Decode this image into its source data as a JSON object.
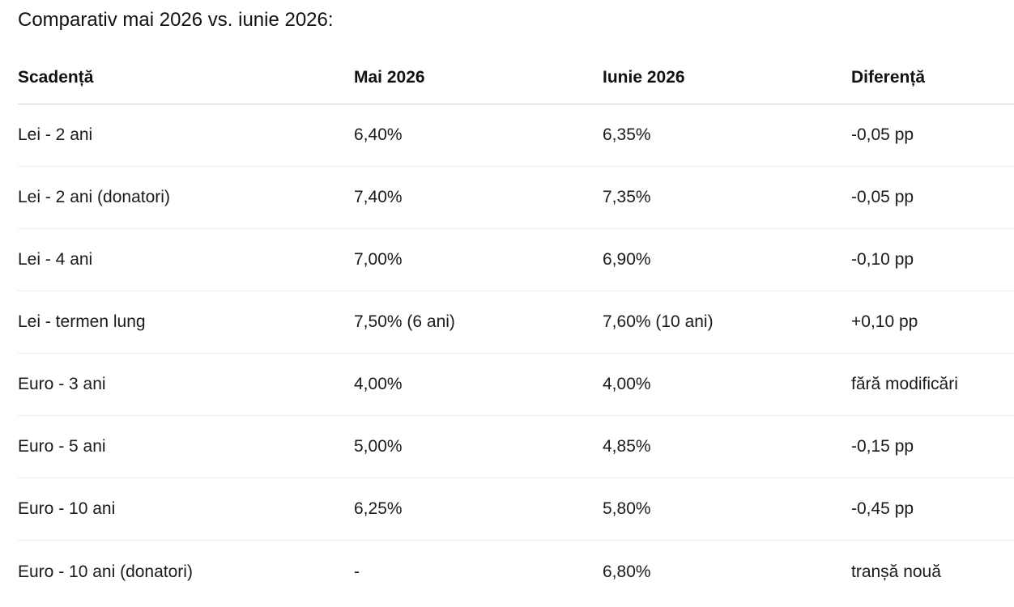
{
  "heading": "Comparativ mai 2026 vs. iunie 2026:",
  "table": {
    "headers": [
      "Scadență",
      "Mai 2026",
      "Iunie 2026",
      "Diferență"
    ],
    "rows": [
      [
        "Lei - 2 ani",
        "6,40%",
        "6,35%",
        "-0,05 pp"
      ],
      [
        "Lei - 2 ani (donatori)",
        "7,40%",
        "7,35%",
        "-0,05 pp"
      ],
      [
        "Lei - 4 ani",
        "7,00%",
        "6,90%",
        "-0,10 pp"
      ],
      [
        "Lei - termen lung",
        "7,50% (6 ani)",
        "7,60% (10 ani)",
        "+0,10 pp"
      ],
      [
        "Euro - 3 ani",
        "4,00%",
        "4,00%",
        "fără modificări"
      ],
      [
        "Euro - 5 ani",
        "5,00%",
        "4,85%",
        "-0,15 pp"
      ],
      [
        "Euro - 10 ani",
        "6,25%",
        "5,80%",
        "-0,45 pp"
      ],
      [
        "Euro - 10 ani (donatori)",
        "-",
        "6,80%",
        "tranșă nouă"
      ]
    ]
  }
}
